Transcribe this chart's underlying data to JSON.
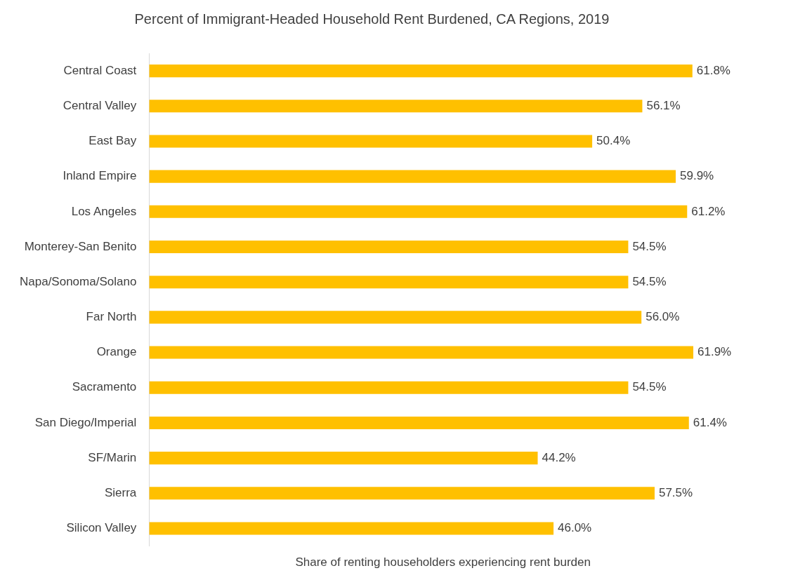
{
  "chart_data": {
    "type": "bar",
    "orientation": "horizontal",
    "title": "Percent of Immigrant-Headed Household Rent Burdened, CA Regions, 2019",
    "xlabel": "Share of renting householders experiencing rent burden",
    "categories": [
      "Central Coast",
      "Central Valley",
      "East Bay",
      "Inland Empire",
      "Los Angeles",
      "Monterey-San Benito",
      "Napa/Sonoma/Solano",
      "Far North",
      "Orange",
      "Sacramento",
      "San Diego/Imperial",
      "SF/Marin",
      "Sierra",
      "Silicon Valley"
    ],
    "values": [
      61.8,
      56.1,
      50.4,
      59.9,
      61.2,
      54.5,
      54.5,
      56.0,
      61.9,
      54.5,
      61.4,
      44.2,
      57.5,
      46.0
    ],
    "value_labels": [
      "61.8%",
      "56.1%",
      "50.4%",
      "59.9%",
      "61.2%",
      "54.5%",
      "54.5%",
      "56.0%",
      "61.9%",
      "54.5%",
      "61.4%",
      "44.2%",
      "57.5%",
      "46.0%"
    ],
    "color": "#ffc000",
    "grid": false,
    "legend": false,
    "tick_labels": "y"
  }
}
